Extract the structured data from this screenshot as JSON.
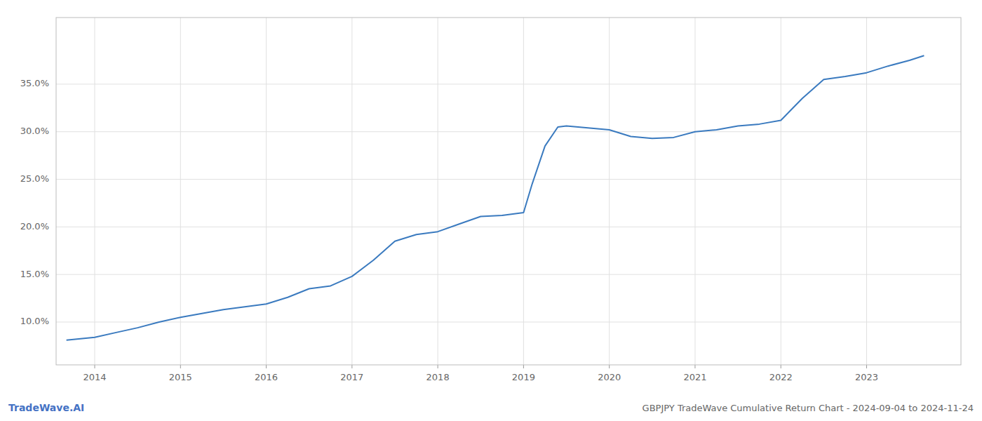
{
  "chart_data": {
    "type": "line",
    "title": "GBPJPY TradeWave Cumulative Return Chart - 2024-09-04 to 2024-11-24",
    "annotations": [
      "TradeWave.AI"
    ],
    "x": [
      2013.67,
      2014.0,
      2014.25,
      2014.5,
      2014.75,
      2015.0,
      2015.25,
      2015.5,
      2015.75,
      2016.0,
      2016.25,
      2016.5,
      2016.75,
      2017.0,
      2017.25,
      2017.5,
      2017.75,
      2018.0,
      2018.25,
      2018.5,
      2018.75,
      2019.0,
      2019.1,
      2019.25,
      2019.4,
      2019.5,
      2019.75,
      2020.0,
      2020.25,
      2020.5,
      2020.75,
      2021.0,
      2021.25,
      2021.5,
      2021.75,
      2022.0,
      2022.25,
      2022.5,
      2022.75,
      2023.0,
      2023.25,
      2023.5,
      2023.67
    ],
    "values": [
      8.1,
      8.4,
      8.9,
      9.4,
      10.0,
      10.5,
      10.9,
      11.3,
      11.6,
      11.9,
      12.6,
      13.5,
      13.8,
      14.8,
      16.5,
      18.5,
      19.2,
      19.5,
      20.3,
      21.1,
      21.2,
      21.5,
      24.5,
      28.5,
      30.5,
      30.6,
      30.4,
      30.2,
      29.5,
      29.3,
      29.4,
      30.0,
      30.2,
      30.6,
      30.8,
      31.2,
      33.5,
      35.5,
      35.8,
      36.2,
      36.9,
      37.5,
      38.0
    ],
    "color": "#3a7abf",
    "xlim": [
      2013.55,
      2024.1
    ],
    "xticks": [
      2014,
      2015,
      2016,
      2017,
      2018,
      2019,
      2020,
      2021,
      2022,
      2023
    ],
    "ylim": [
      5.5,
      42.0
    ],
    "yticks": [
      {
        "value": 10.0,
        "label": "10.0%"
      },
      {
        "value": 15.0,
        "label": "15.0%"
      },
      {
        "value": 20.0,
        "label": "20.0%"
      },
      {
        "value": 25.0,
        "label": "25.0%"
      },
      {
        "value": 30.0,
        "label": "30.0%"
      },
      {
        "value": 35.0,
        "label": "35.0%"
      }
    ],
    "grid": true
  }
}
